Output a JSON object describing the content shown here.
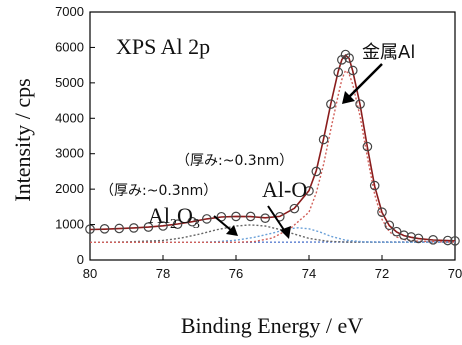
{
  "chart_data": {
    "type": "line",
    "title": "",
    "panel_label": "XPS Al 2p",
    "xlabel": "Binding Energy / eV",
    "ylabel": "Intensity / cps",
    "xlim": [
      80,
      70
    ],
    "ylim": [
      0,
      7000
    ],
    "x_reversed": true,
    "xticks": [
      80,
      78,
      76,
      74,
      72,
      70
    ],
    "yticks": [
      0,
      1000,
      2000,
      3000,
      4000,
      5000,
      6000,
      7000
    ],
    "grid": false,
    "annotations": {
      "metal": "金属Al",
      "alo_thickness": "（厚み:~0.3nm）",
      "alo_label": "Al-O",
      "al2o3_thickness": "（厚み:~0.3nm）",
      "al2o3_label": "Al",
      "al2o3_sub": "2",
      "al2o3_O": "O",
      "al2o3_sub2": "3"
    },
    "series": [
      {
        "role": "measured",
        "marker": "open-circle",
        "color": "#444444",
        "x": [
          80,
          79.6,
          79.2,
          78.8,
          78.4,
          78.0,
          77.6,
          77.2,
          76.8,
          76.4,
          76.0,
          75.6,
          75.2,
          74.8,
          74.4,
          74.0,
          73.8,
          73.6,
          73.4,
          73.2,
          73.1,
          73.0,
          72.9,
          72.8,
          72.6,
          72.4,
          72.2,
          72.0,
          71.8,
          71.6,
          71.4,
          71.2,
          71.0,
          70.6,
          70.2,
          70.0
        ],
        "y": [
          870,
          880,
          890,
          905,
          930,
          960,
          1010,
          1080,
          1160,
          1220,
          1230,
          1230,
          1180,
          1220,
          1450,
          1950,
          2500,
          3400,
          4400,
          5300,
          5650,
          5800,
          5700,
          5350,
          4400,
          3200,
          2100,
          1350,
          980,
          800,
          700,
          650,
          610,
          570,
          550,
          540
        ]
      },
      {
        "role": "fit-envelope",
        "color": "#8a1c1c",
        "x": [
          80,
          79.6,
          79.2,
          78.8,
          78.4,
          78.0,
          77.6,
          77.2,
          76.8,
          76.4,
          76.0,
          75.6,
          75.2,
          74.8,
          74.4,
          74.0,
          73.8,
          73.6,
          73.4,
          73.2,
          73.1,
          73.0,
          72.9,
          72.8,
          72.6,
          72.4,
          72.2,
          72.0,
          71.8,
          71.6,
          71.4,
          71.2,
          71.0,
          70.6,
          70.2,
          70.0
        ],
        "y": [
          860,
          870,
          885,
          905,
          930,
          965,
          1015,
          1080,
          1160,
          1215,
          1230,
          1225,
          1190,
          1230,
          1460,
          1960,
          2520,
          3420,
          4420,
          5320,
          5660,
          5780,
          5690,
          5330,
          4380,
          3180,
          2080,
          1340,
          970,
          790,
          690,
          640,
          605,
          565,
          548,
          540
        ]
      },
      {
        "role": "background",
        "color": "#5b7fd1",
        "x": [
          80,
          78,
          76,
          74,
          72,
          70
        ],
        "y": [
          500,
          500,
          500,
          505,
          510,
          510
        ]
      },
      {
        "role": "Al2O3-component",
        "color": "#666666",
        "x": [
          80,
          79,
          78,
          77.5,
          77,
          76.5,
          76,
          75.6,
          75.2,
          74.8,
          74.4,
          74.0,
          73.5,
          73,
          72,
          70
        ],
        "y": [
          500,
          510,
          550,
          620,
          730,
          860,
          960,
          990,
          960,
          860,
          730,
          610,
          530,
          505,
          500,
          500
        ]
      },
      {
        "role": "Al-O-component",
        "color": "#6aa0d8",
        "x": [
          80,
          77,
          76.5,
          76,
          75.5,
          75.0,
          74.6,
          74.3,
          74.0,
          73.7,
          73.4,
          73.0,
          72.5,
          72,
          70
        ],
        "y": [
          500,
          500,
          520,
          560,
          640,
          760,
          870,
          910,
          880,
          790,
          670,
          560,
          510,
          500,
          500
        ]
      },
      {
        "role": "metal-Al-component",
        "color": "#d1605a",
        "x": [
          80,
          76,
          75.5,
          75,
          74.5,
          74.0,
          73.8,
          73.6,
          73.4,
          73.2,
          73.1,
          73.0,
          72.9,
          72.8,
          72.6,
          72.4,
          72.2,
          72.0,
          71.8,
          71.6,
          71.4,
          71.0,
          70
        ],
        "y": [
          500,
          500,
          520,
          620,
          900,
          1350,
          1900,
          2700,
          3700,
          4650,
          5100,
          5350,
          5250,
          4950,
          4050,
          2900,
          1850,
          1150,
          800,
          650,
          580,
          530,
          505
        ]
      }
    ]
  }
}
